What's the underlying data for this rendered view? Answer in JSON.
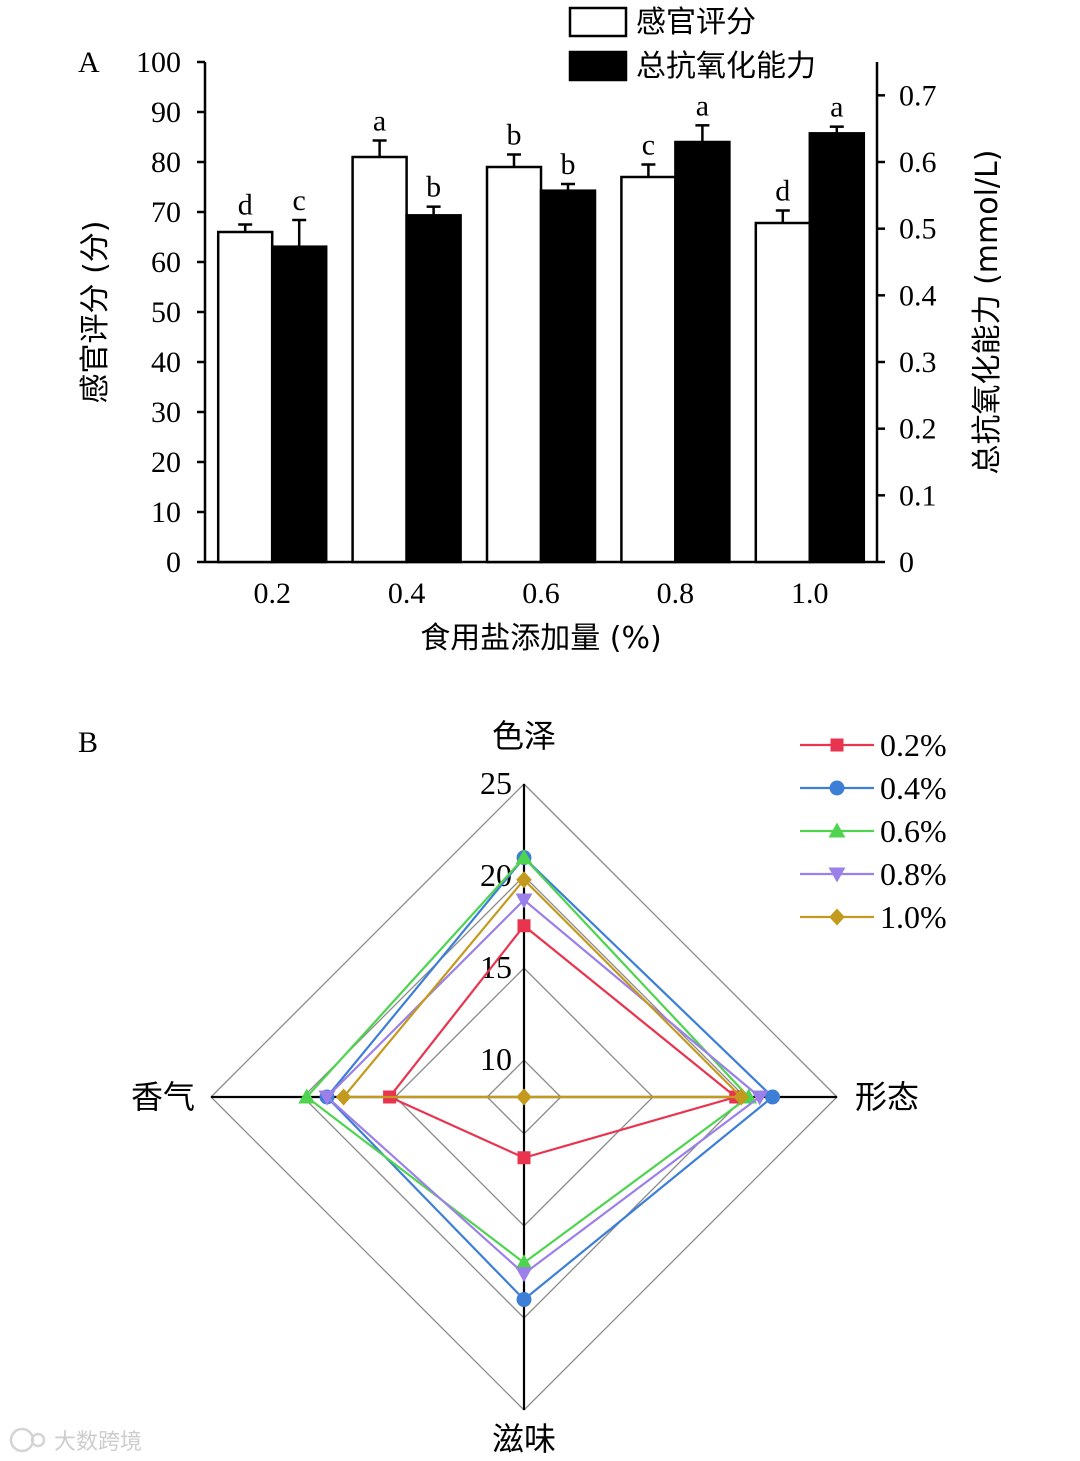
{
  "chart_data": [
    {
      "panel": "A",
      "type": "bar",
      "xlabel": "食用盐添加量 (%)",
      "categories": [
        "0.2",
        "0.4",
        "0.6",
        "0.8",
        "1.0"
      ],
      "y_left": {
        "label": "感官评分 (分)",
        "lim": [
          0,
          100
        ],
        "ticks": [
          "0",
          "10",
          "20",
          "30",
          "40",
          "50",
          "60",
          "70",
          "80",
          "90",
          "100"
        ]
      },
      "y_right": {
        "label": "总抗氧化能力 (mmol/L)",
        "lim": [
          0,
          0.75
        ],
        "ticks": [
          "0",
          "0.1",
          "0.2",
          "0.3",
          "0.4",
          "0.5",
          "0.6",
          "0.7"
        ]
      },
      "series": [
        {
          "name": "感官评分",
          "axis": "left",
          "fill": "#ffffff",
          "values": [
            66,
            81,
            79,
            77,
            67.8
          ],
          "errors": [
            1.5,
            3.3,
            2.5,
            2.5,
            2.5
          ],
          "sig": [
            "d",
            "a",
            "b",
            "c",
            "d"
          ]
        },
        {
          "name": "总抗氧化能力",
          "axis": "right",
          "fill": "#000000",
          "values": [
            0.473,
            0.52,
            0.557,
            0.63,
            0.643
          ],
          "errors": [
            0.04,
            0.013,
            0.01,
            0.025,
            0.01
          ],
          "sig": [
            "c",
            "b",
            "b",
            "a",
            "a"
          ]
        }
      ],
      "legend": "top-right",
      "grid": false
    },
    {
      "panel": "B",
      "type": "radar",
      "axes": [
        "色泽",
        "形态",
        "滋味",
        "香气"
      ],
      "range": [
        8,
        25
      ],
      "ticks": [
        "10",
        "15",
        "20",
        "25"
      ],
      "series": [
        {
          "name": "0.2%",
          "color": "#e8344e",
          "marker": "square",
          "values": [
            17.3,
            19.5,
            11.3,
            15.3
          ]
        },
        {
          "name": "0.4%",
          "color": "#3d7fd6",
          "marker": "circle",
          "values": [
            21.0,
            21.5,
            19.0,
            18.7
          ]
        },
        {
          "name": "0.6%",
          "color": "#4fd44f",
          "marker": "triangle-up",
          "values": [
            21.0,
            20.2,
            17.0,
            19.8
          ]
        },
        {
          "name": "0.8%",
          "color": "#9a80e8",
          "marker": "triangle-down",
          "values": [
            18.7,
            20.8,
            17.6,
            18.7
          ]
        },
        {
          "name": "1.0%",
          "color": "#c49a1e",
          "marker": "diamond",
          "values": [
            19.8,
            19.8,
            8.0,
            17.8
          ]
        }
      ],
      "legend": "top-right"
    }
  ],
  "watermark": "大数跨境"
}
